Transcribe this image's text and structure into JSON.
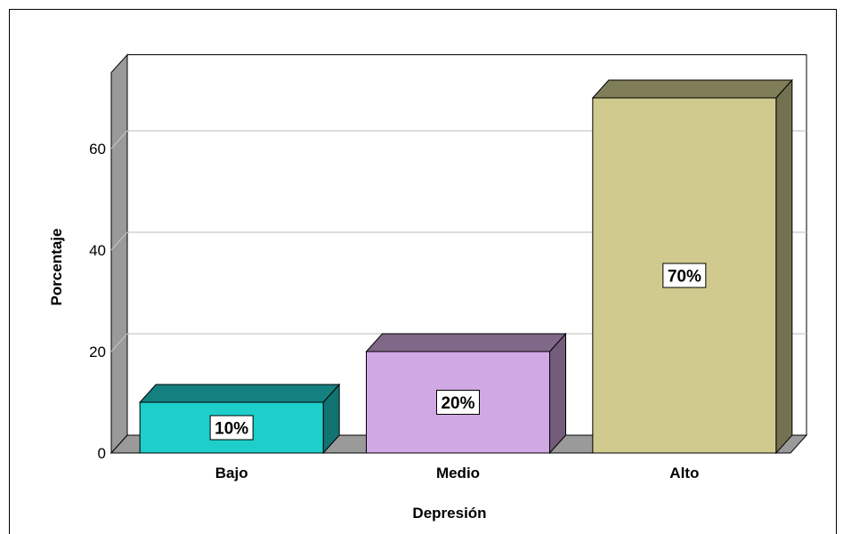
{
  "chart_data": {
    "type": "bar",
    "title": "",
    "xlabel": "Depresión",
    "ylabel": "Porcentaje",
    "categories": [
      "Bajo",
      "Medio",
      "Alto"
    ],
    "values": [
      10,
      20,
      70
    ],
    "data_labels": [
      "10%",
      "20%",
      "70%"
    ],
    "ylim": [
      0,
      75
    ],
    "yticks": [
      0,
      20,
      40,
      60
    ],
    "grid": true,
    "style": "3d",
    "colors": {
      "front": [
        "#1ECECA",
        "#D0A8E4",
        "#D0CA8E"
      ],
      "top": [
        "#158080",
        "#806888",
        "#807E58"
      ],
      "side": [
        "#127373",
        "#735D7B",
        "#737150"
      ],
      "wall": "#9A9A9A",
      "floor": "#9A9A9A",
      "gridline": "#C8C8C8"
    }
  }
}
